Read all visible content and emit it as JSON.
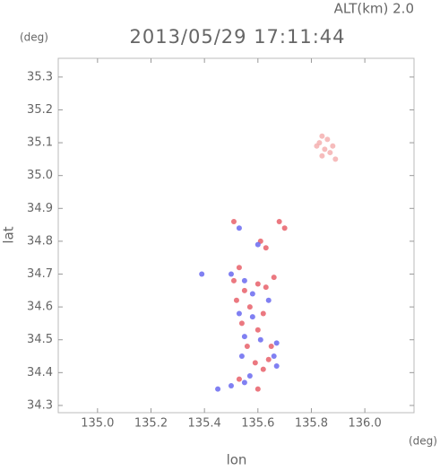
{
  "chart_data": {
    "type": "scatter",
    "title": "2013/05/29 17:11:44",
    "subtitle": "ALT(km) 2.0",
    "y_unit": "(deg)",
    "x_unit": "(deg)",
    "x_label": "lon",
    "y_label": "lat",
    "xlim": [
      134.853,
      136.184
    ],
    "ylim": [
      34.278,
      35.357
    ],
    "xticks": [
      {
        "value": 135,
        "label": "135.0"
      },
      135.2,
      135.4,
      135.6,
      135.8,
      {
        "value": 136,
        "label": "136.0"
      }
    ],
    "yticks": [
      34.3,
      34.4,
      34.5,
      34.6,
      34.7,
      34.8,
      34.9,
      {
        "value": 35,
        "label": "35.0"
      },
      35.1,
      35.2,
      35.3
    ],
    "series": [
      {
        "color": "#f4b0b0",
        "x": [
          135.83,
          135.84,
          135.85,
          135.82,
          135.86,
          135.87,
          135.88,
          135.84,
          135.89
        ],
        "y": [
          35.1,
          35.12,
          35.08,
          35.09,
          35.11,
          35.07,
          35.09,
          35.06,
          35.05
        ]
      },
      {
        "color": "#e8606a",
        "x": [
          135.51,
          135.68,
          135.7,
          135.61,
          135.63,
          135.53,
          135.51,
          135.55,
          135.6,
          135.63,
          135.66,
          135.52,
          135.57,
          135.62,
          135.54,
          135.6,
          135.56,
          135.65,
          135.59,
          135.62,
          135.64,
          135.53,
          135.6
        ],
        "y": [
          34.86,
          34.86,
          34.84,
          34.8,
          34.78,
          34.72,
          34.68,
          34.65,
          34.67,
          34.66,
          34.69,
          34.62,
          34.6,
          34.58,
          34.55,
          34.53,
          34.48,
          34.48,
          34.43,
          34.41,
          34.44,
          34.38,
          34.35
        ]
      },
      {
        "color": "#6a6af0",
        "x": [
          135.53,
          135.6,
          135.39,
          135.5,
          135.55,
          135.58,
          135.64,
          135.53,
          135.58,
          135.55,
          135.61,
          135.54,
          135.67,
          135.66,
          135.57,
          135.5,
          135.45,
          135.55,
          135.67
        ],
        "y": [
          34.84,
          34.79,
          34.7,
          34.7,
          34.68,
          34.64,
          34.62,
          34.58,
          34.57,
          34.51,
          34.5,
          34.45,
          34.49,
          34.45,
          34.39,
          34.36,
          34.35,
          34.37,
          34.42
        ]
      }
    ]
  }
}
